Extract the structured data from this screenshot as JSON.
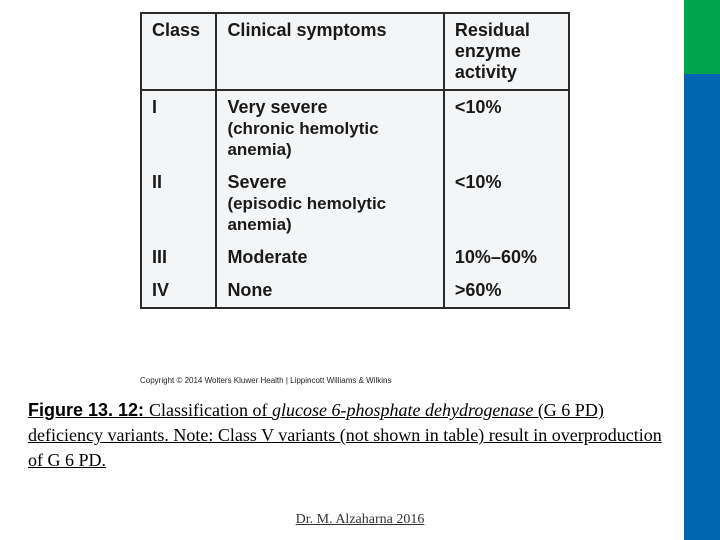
{
  "sidebar": {
    "green_color": "#00a54f",
    "blue_color": "#0066b3"
  },
  "table": {
    "background_color": "#f4f5f6",
    "border_color": "#2b2b2b",
    "header": {
      "col1": "Class",
      "col2": "Clinical symptoms",
      "col3": "Residual enzyme activity"
    },
    "rows": [
      {
        "class": "I",
        "symptom": "Very severe",
        "detail": "(chronic hemolytic anemia)",
        "activity": "<10%"
      },
      {
        "class": "II",
        "symptom": "Severe",
        "detail": "(episodic hemolytic anemia)",
        "activity": "<10%"
      },
      {
        "class": "III",
        "symptom": "Moderate",
        "detail": "",
        "activity": "10%–60%"
      },
      {
        "class": "IV",
        "symptom": "None",
        "detail": "",
        "activity": ">60%"
      }
    ]
  },
  "copyright": "Copyright © 2014 Wolters Kluwer Health | Lippincott Williams & Wilkins",
  "caption": {
    "label": "Figure 13. 12: ",
    "text1": "Classification of ",
    "ital1": "glucose 6-phosphate dehydrogenase",
    "text2": " (G 6 PD) deficiency variants. Note: Class V variants (not shown in table) result in overproduction of G 6 PD."
  },
  "footer": "Dr. M. Alzaharna 2016"
}
